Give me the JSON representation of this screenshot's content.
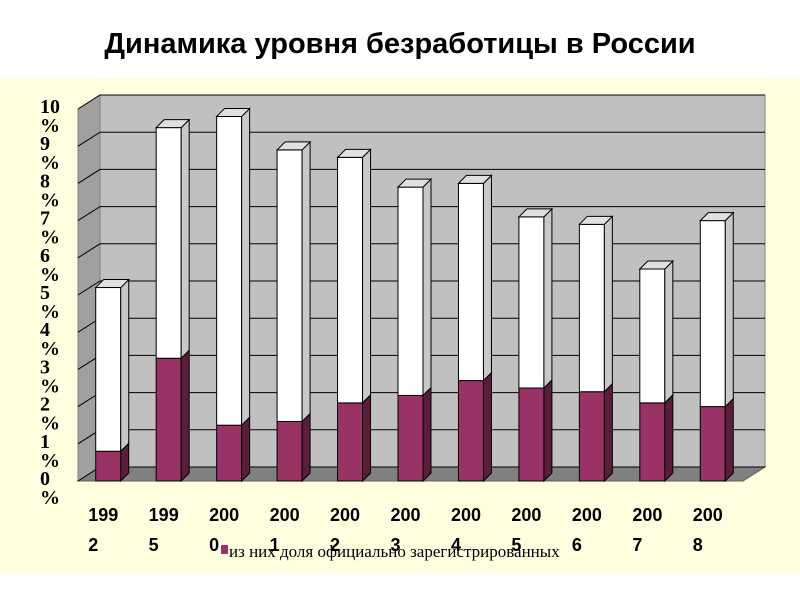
{
  "title": "Динамика уровня безработицы в России",
  "chart_data": {
    "type": "bar",
    "subtype": "stacked-3d",
    "categories": [
      "1992",
      "1995",
      "2000",
      "2001",
      "2002",
      "2003",
      "2004",
      "2005",
      "2006",
      "2007",
      "2008"
    ],
    "series": [
      {
        "name": "из них доля официально зарегистрированных",
        "color": "#993366",
        "values": [
          0.8,
          3.3,
          1.5,
          1.6,
          2.1,
          2.3,
          2.7,
          2.5,
          2.4,
          2.1,
          2.0
        ]
      },
      {
        "color": "#ffffff",
        "values": [
          4.4,
          6.2,
          8.3,
          7.3,
          6.6,
          5.6,
          5.3,
          4.6,
          4.5,
          3.6,
          5.0
        ]
      }
    ],
    "yticks": [
      "0%",
      "1%",
      "2%",
      "3%",
      "4%",
      "5%",
      "6%",
      "7%",
      "8%",
      "9%",
      "10%"
    ],
    "ylim": [
      0,
      10
    ],
    "legend": "bottom",
    "colors": {
      "background": "#ffffe0",
      "wall": "#c0c0c0",
      "floor": "#808080",
      "grid": "#000000"
    }
  }
}
